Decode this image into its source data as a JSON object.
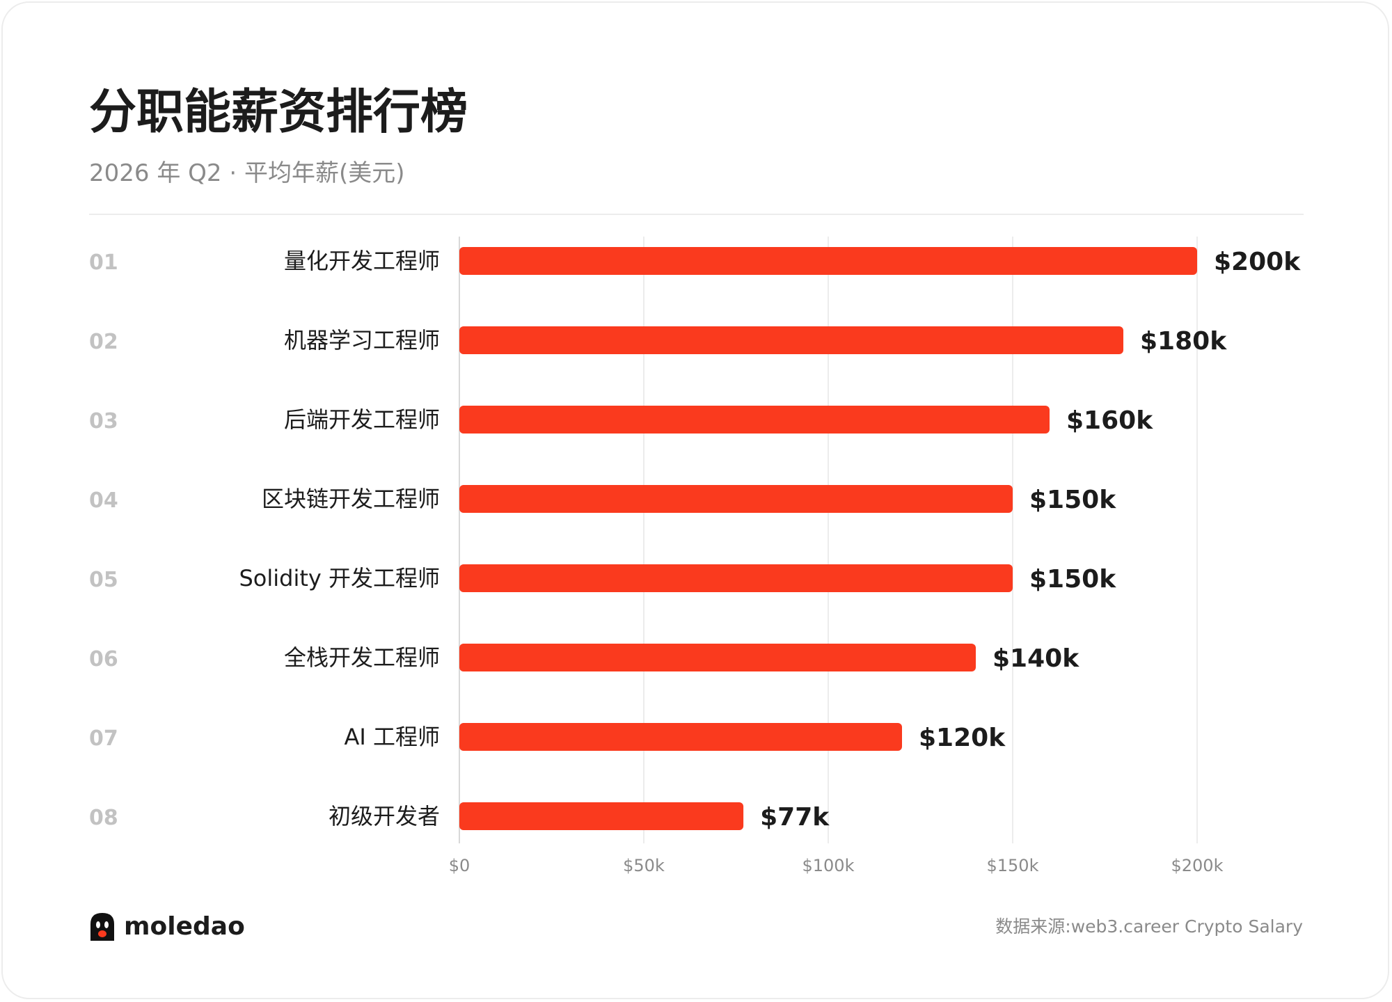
{
  "header": {
    "title": "分职能薪资排行榜",
    "subtitle": "2026 年 Q2 · 平均年薪(美元)"
  },
  "colors": {
    "bar": "#fa3a1e",
    "rank": "#c2c2c2",
    "label": "#1c1c1c",
    "grid": "#ececec",
    "tick": "#8a8a8a"
  },
  "chart_data": {
    "type": "bar",
    "orientation": "horizontal",
    "ranks": [
      "01",
      "02",
      "03",
      "04",
      "05",
      "06",
      "07",
      "08"
    ],
    "categories": [
      "量化开发工程师",
      "机器学习工程师",
      "后端开发工程师",
      "区块链开发工程师",
      "Solidity 开发工程师",
      "全栈开发工程师",
      "AI 工程师",
      "初级开发者"
    ],
    "values": [
      200000,
      180000,
      160000,
      150000,
      150000,
      140000,
      120000,
      77000
    ],
    "value_labels": [
      "$200k",
      "$180k",
      "$160k",
      "$150k",
      "$150k",
      "$140k",
      "$120k",
      "$77k"
    ],
    "x_ticks": [
      0,
      50000,
      100000,
      150000,
      200000
    ],
    "x_tick_labels": [
      "$0",
      "$50k",
      "$100k",
      "$150k",
      "$200k"
    ],
    "xlim": [
      0,
      200000
    ],
    "grid": true
  },
  "footer": {
    "logo_text": "moledao",
    "source": "数据来源:web3.career Crypto Salary"
  }
}
